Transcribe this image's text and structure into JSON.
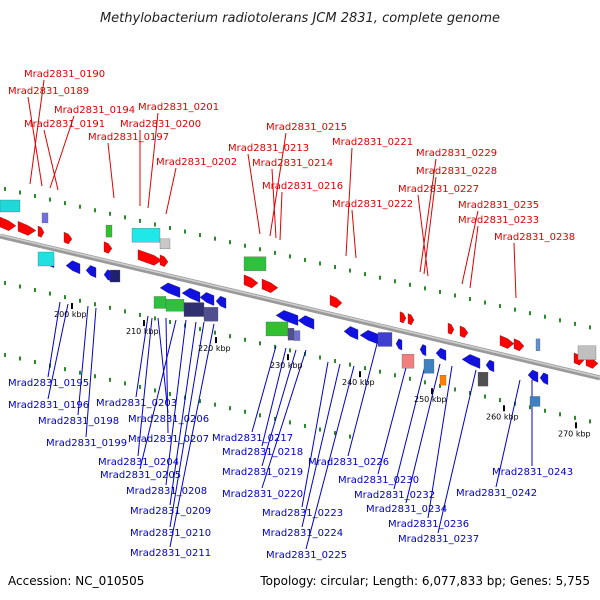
{
  "header": {
    "title": "Methylobacterium radiotolerans JCM 2831, complete genome"
  },
  "footer": {
    "accession": "Accession: NC_010505",
    "stats": "Topology: circular; Length: 6,077,833 bp; Genes: 5,755"
  },
  "colors": {
    "top_label": "#e00000",
    "bottom_label": "#0000c8",
    "axis": "#888888",
    "tick_mark": "#2a8a2a"
  },
  "axis_ticks": [
    "200 kbp",
    "210 kbp",
    "220 kbp",
    "230 kbp",
    "240 kbp",
    "250 kbp",
    "260 kbp",
    "270 kbp"
  ],
  "top_labels": [
    "Mrad2831_0190",
    "Mrad2831_0189",
    "Mrad2831_0194",
    "Mrad2831_0191",
    "Mrad2831_0197",
    "Mrad2831_0201",
    "Mrad2831_0200",
    "Mrad2831_0202",
    "Mrad2831_0215",
    "Mrad2831_0213",
    "Mrad2831_0214",
    "Mrad2831_0216",
    "Mrad2831_0221",
    "Mrad2831_0222",
    "Mrad2831_0229",
    "Mrad2831_0228",
    "Mrad2831_0227",
    "Mrad2831_0235",
    "Mrad2831_0233",
    "Mrad2831_0238"
  ],
  "bottom_labels": [
    "Mrad2831_0195",
    "Mrad2831_0196",
    "Mrad2831_0198",
    "Mrad2831_0199",
    "Mrad2831_0203",
    "Mrad2831_0206",
    "Mrad2831_0207",
    "Mrad2831_0204",
    "Mrad2831_0205",
    "Mrad2831_0208",
    "Mrad2831_0209",
    "Mrad2831_0210",
    "Mrad2831_0211",
    "Mrad2831_0217",
    "Mrad2831_0218",
    "Mrad2831_0219",
    "Mrad2831_0220",
    "Mrad2831_0223",
    "Mrad2831_0224",
    "Mrad2831_0225",
    "Mrad2831_0226",
    "Mrad2831_0230",
    "Mrad2831_0232",
    "Mrad2831_0234",
    "Mrad2831_0236",
    "Mrad2831_0237",
    "Mrad2831_0242",
    "Mrad2831_0243"
  ]
}
